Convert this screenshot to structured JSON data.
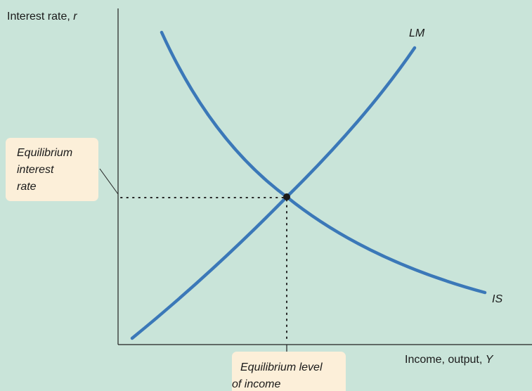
{
  "y_axis": {
    "text": "Interest rate, ",
    "variable": "r"
  },
  "x_axis": {
    "text": "Income, output, ",
    "variable": "Y"
  },
  "curves": [
    {
      "label": "IS"
    },
    {
      "label": "LM"
    }
  ],
  "annotations": {
    "equilibrium_rate": {
      "lines": [
        "Equilibrium",
        "interest",
        "rate"
      ]
    },
    "equilibrium_income": {
      "lines": [
        "Equilibrium level",
        "of income"
      ]
    }
  }
}
